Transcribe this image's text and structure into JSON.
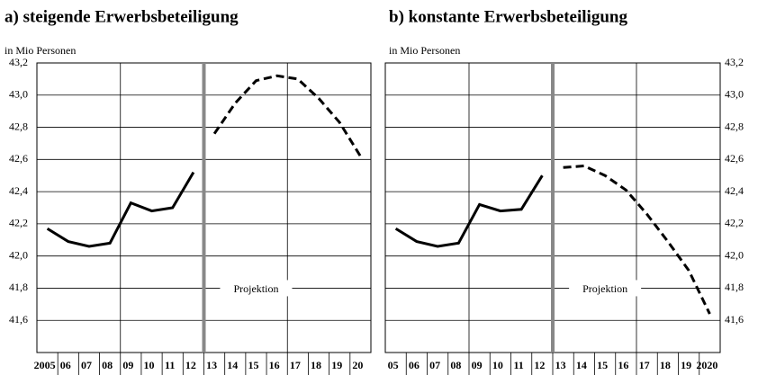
{
  "chart_data": [
    {
      "type": "line",
      "title": "a) steigende Erwerbsbeteiligung",
      "y_label": "in Mio Personen",
      "annotation": "Projektion",
      "categories": [
        "2005",
        "06",
        "07",
        "08",
        "09",
        "10",
        "11",
        "12",
        "13",
        "14",
        "15",
        "16",
        "17",
        "18",
        "19",
        "20"
      ],
      "series": [
        {
          "color": "#000000",
          "dash": false,
          "values": [
            42.17,
            42.09,
            42.06,
            42.08,
            42.33,
            42.28,
            42.3,
            42.52,
            null,
            null,
            null,
            null,
            null,
            null,
            null,
            null
          ]
        },
        {
          "color": "#000000",
          "dash": true,
          "values": [
            null,
            null,
            null,
            null,
            null,
            null,
            null,
            null,
            42.76,
            42.95,
            43.09,
            43.12,
            43.1,
            42.98,
            42.83,
            42.62
          ]
        }
      ],
      "ylim": [
        41.4,
        43.2
      ],
      "yticks": [
        {
          "value": 41.6,
          "label": "41,6"
        },
        {
          "value": 41.8,
          "label": "41,8"
        },
        {
          "value": 42.0,
          "label": "42,0"
        },
        {
          "value": 42.2,
          "label": "42,2"
        },
        {
          "value": 42.4,
          "label": "42,4"
        },
        {
          "value": 42.6,
          "label": "42,6"
        },
        {
          "value": 42.8,
          "label": "42,8"
        },
        {
          "value": 43.0,
          "label": "43,0"
        },
        {
          "value": 43.2,
          "label": "43,2"
        }
      ],
      "yaxis_side": "left",
      "grid": true
    },
    {
      "type": "line",
      "title": "b) konstante Erwerbsbeteiligung",
      "y_label": "in Mio Personen",
      "annotation": "Projektion",
      "categories": [
        "05",
        "06",
        "07",
        "08",
        "09",
        "10",
        "11",
        "12",
        "13",
        "14",
        "15",
        "16",
        "17",
        "18",
        "19",
        "2020"
      ],
      "series": [
        {
          "color": "#000000",
          "dash": false,
          "values": [
            42.17,
            42.09,
            42.06,
            42.08,
            42.32,
            42.28,
            42.29,
            42.5,
            null,
            null,
            null,
            null,
            null,
            null,
            null,
            null
          ]
        },
        {
          "color": "#000000",
          "dash": true,
          "values": [
            null,
            null,
            null,
            null,
            null,
            null,
            null,
            null,
            42.55,
            42.56,
            42.5,
            42.41,
            42.26,
            42.09,
            41.91,
            41.64
          ]
        }
      ],
      "ylim": [
        41.4,
        43.2
      ],
      "yticks": [
        {
          "value": 41.6,
          "label": "41,6"
        },
        {
          "value": 41.8,
          "label": "41,8"
        },
        {
          "value": 42.0,
          "label": "42,0"
        },
        {
          "value": 42.2,
          "label": "42,2"
        },
        {
          "value": 42.4,
          "label": "42,4"
        },
        {
          "value": 42.6,
          "label": "42,6"
        },
        {
          "value": 42.8,
          "label": "42,8"
        },
        {
          "value": 43.0,
          "label": "43,0"
        },
        {
          "value": 43.2,
          "label": "43,2"
        }
      ],
      "yaxis_side": "right",
      "grid": true
    }
  ]
}
